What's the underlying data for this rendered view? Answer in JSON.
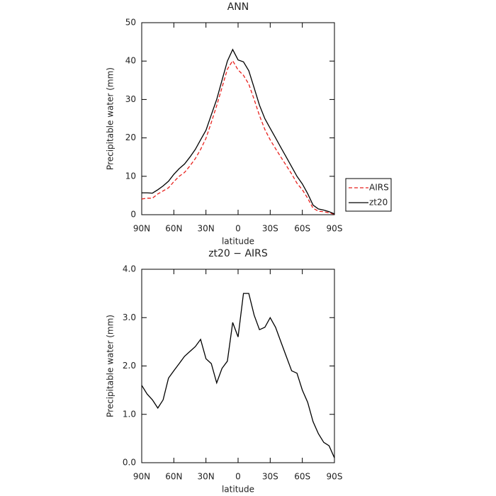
{
  "chart_data": [
    {
      "type": "line",
      "title": "ANN",
      "xlabel": "latitude",
      "ylabel": "Precipitable water (mm)",
      "x": [
        90,
        85,
        80,
        75,
        70,
        65,
        60,
        55,
        50,
        45,
        40,
        35,
        30,
        25,
        20,
        15,
        10,
        5,
        0,
        -5,
        -10,
        -15,
        -20,
        -25,
        -30,
        -35,
        -40,
        -45,
        -50,
        -55,
        -60,
        -65,
        -70,
        -75,
        -80,
        -85,
        -90
      ],
      "series": [
        {
          "name": "AIRS",
          "color": "#e8211d",
          "dash": "dashed",
          "values": [
            4.1,
            4.3,
            4.3,
            5.4,
            6.2,
            7.0,
            8.6,
            10.0,
            11.0,
            12.7,
            14.6,
            17.0,
            19.9,
            24.0,
            28.4,
            33.1,
            37.9,
            40.1,
            37.7,
            36.3,
            34.0,
            30.0,
            25.8,
            22.2,
            19.5,
            17.2,
            15.0,
            12.8,
            10.6,
            8.2,
            6.5,
            4.3,
            1.7,
            0.9,
            0.8,
            0.5,
            0.1
          ]
        },
        {
          "name": "zt20",
          "color": "#000000",
          "dash": "solid",
          "values": [
            5.7,
            5.7,
            5.6,
            6.5,
            7.5,
            8.7,
            10.5,
            12.0,
            13.2,
            15.0,
            17.0,
            19.5,
            22.0,
            26.0,
            30.0,
            35.0,
            40.0,
            43.0,
            40.3,
            39.8,
            37.5,
            33.0,
            28.5,
            25.0,
            22.5,
            20.0,
            17.5,
            15.0,
            12.5,
            10.0,
            8.0,
            5.5,
            2.5,
            1.5,
            1.2,
            0.8,
            0.2
          ]
        }
      ],
      "xlim": [
        90,
        -90
      ],
      "xticks": [
        {
          "value": 90,
          "label": "90N"
        },
        {
          "value": 60,
          "label": "60N"
        },
        {
          "value": 30,
          "label": "30N"
        },
        0,
        {
          "value": -30,
          "label": "30S"
        },
        {
          "value": -60,
          "label": "60S"
        },
        {
          "value": -90,
          "label": "90S"
        }
      ],
      "ylim": [
        0,
        50
      ],
      "yticks": [
        0,
        10,
        20,
        30,
        40,
        50
      ],
      "legend": "outside right"
    },
    {
      "type": "line",
      "title": "zt20 − AIRS",
      "xlabel": "latitude",
      "ylabel": "Precipitable water (mm)",
      "x": [
        90,
        85,
        80,
        75,
        70,
        65,
        60,
        55,
        50,
        45,
        40,
        35,
        30,
        25,
        20,
        15,
        10,
        5,
        0,
        -5,
        -10,
        -15,
        -20,
        -25,
        -30,
        -35,
        -40,
        -45,
        -50,
        -55,
        -60,
        -65,
        -70,
        -75,
        -80,
        -85,
        -90
      ],
      "color": "#000000",
      "values": [
        1.6,
        1.42,
        1.3,
        1.13,
        1.3,
        1.75,
        1.9,
        2.05,
        2.2,
        2.3,
        2.4,
        2.55,
        2.15,
        2.05,
        1.65,
        1.95,
        2.1,
        2.9,
        2.6,
        3.5,
        3.5,
        3.05,
        2.75,
        2.8,
        3.0,
        2.8,
        2.5,
        2.2,
        1.9,
        1.85,
        1.5,
        1.25,
        0.85,
        0.6,
        0.42,
        0.35,
        0.1
      ],
      "xlim": [
        90,
        -90
      ],
      "xticks": [
        {
          "value": 90,
          "label": "90N"
        },
        {
          "value": 60,
          "label": "60N"
        },
        {
          "value": 30,
          "label": "30N"
        },
        0,
        {
          "value": -30,
          "label": "30S"
        },
        {
          "value": -60,
          "label": "60S"
        },
        {
          "value": -90,
          "label": "90S"
        }
      ],
      "ylim": [
        0,
        4
      ],
      "yticks": [
        {
          "value": 0,
          "label": "0.0"
        },
        {
          "value": 1,
          "label": "1.0"
        },
        {
          "value": 2,
          "label": "2.0"
        },
        {
          "value": 3,
          "label": "3.0"
        },
        {
          "value": 4,
          "label": "4.0"
        }
      ]
    }
  ]
}
